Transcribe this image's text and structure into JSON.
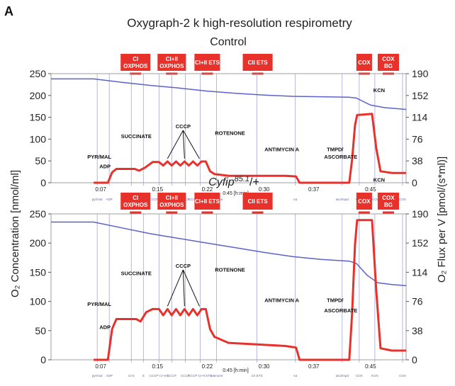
{
  "panel_letter": "A",
  "title": "Oxygraph-2 k high-resolution respirometry",
  "left_axis_label": "O₂ Concentration [nmol/ml]",
  "right_axis_label": "O₂ Flux per V [pmol/(s*ml)]",
  "time_unit_label": "0:45 [h:min]",
  "colors": {
    "concentration_line": "#5b62c8",
    "flux_line": "#e8312a",
    "state_box": "#e8312a",
    "marker_line": "#9999cc",
    "axis": "#555555"
  },
  "chart_data": [
    {
      "type": "line",
      "subtitle": "Control",
      "title_italic": false,
      "x_unit": "h:min",
      "x_ticks": [
        "0:07",
        "0:15",
        "0:22",
        "0:30",
        "0:37",
        "0:45"
      ],
      "x_range_min": [
        0,
        48
      ],
      "left_ylim": [
        0,
        250
      ],
      "left_yticks": [
        0,
        50,
        100,
        150,
        200,
        250
      ],
      "right_ylim": [
        0,
        190
      ],
      "right_yticks": [
        0,
        38,
        76,
        114,
        152,
        190
      ],
      "states": [
        {
          "label1": "CI",
          "label2": "OXPHOS",
          "t_start": 9.8,
          "t_end": 14.0
        },
        {
          "label1": "CI+II",
          "label2": "OXPHOS",
          "t_start": 15.0,
          "t_end": 19.0
        },
        {
          "label1": "CI+II ETS",
          "label2": "",
          "t_start": 20.2,
          "t_end": 23.8
        },
        {
          "label1": "CII ETS",
          "label2": "",
          "t_start": 27.0,
          "t_end": 31.2
        },
        {
          "label1": "COX",
          "label2": "",
          "t_start": 43.0,
          "t_end": 45.2
        },
        {
          "label1": "COX",
          "label2": "BG",
          "t_start": 46.0,
          "t_end": 49.0
        }
      ],
      "markers": [
        {
          "t": 6.5,
          "label": "pyr/mal"
        },
        {
          "t": 8.2,
          "label": "ADP"
        },
        {
          "t": 11.3,
          "label": "CI-b"
        },
        {
          "t": 13.0,
          "label": "S"
        },
        {
          "t": 15.2,
          "label": "CCCP CI+II-b"
        },
        {
          "t": 17.0,
          "label": "CCCP"
        },
        {
          "t": 18.9,
          "label": "CCCP"
        },
        {
          "t": 21.0,
          "label": "CCCP CI+II ETS"
        },
        {
          "t": 23.3,
          "label": "rotenone"
        },
        {
          "t": 29.0,
          "label": "CII ETS"
        },
        {
          "t": 34.4,
          "label": "Aa"
        },
        {
          "t": 41.0,
          "label": "asc/tmpd"
        },
        {
          "t": 43.4,
          "label": "COX"
        },
        {
          "t": 45.6,
          "label": "KCN"
        },
        {
          "t": 49.5,
          "label": "COX"
        }
      ],
      "series": [
        {
          "name": "O₂ concentration",
          "axis": "left",
          "points": [
            [
              0,
              238
            ],
            [
              6,
              238
            ],
            [
              10,
              230
            ],
            [
              14,
              223
            ],
            [
              18,
              217
            ],
            [
              22,
              210
            ],
            [
              26,
              205
            ],
            [
              30,
              201
            ],
            [
              34,
              198
            ],
            [
              38,
              197
            ],
            [
              42,
              196
            ],
            [
              43,
              194
            ],
            [
              45,
              178
            ],
            [
              47,
              172
            ],
            [
              50,
              168
            ]
          ]
        },
        {
          "name": "O₂ flux",
          "axis": "right",
          "points": [
            [
              6,
              0
            ],
            [
              8.0,
              0
            ],
            [
              8.6,
              18
            ],
            [
              9.2,
              24
            ],
            [
              11.8,
              24
            ],
            [
              12.4,
              21
            ],
            [
              13.2,
              26
            ],
            [
              14.3,
              36
            ],
            [
              15.2,
              36
            ],
            [
              15.8,
              30
            ],
            [
              16.4,
              37
            ],
            [
              17.0,
              30
            ],
            [
              17.6,
              37
            ],
            [
              18.2,
              30
            ],
            [
              18.8,
              37
            ],
            [
              19.4,
              30
            ],
            [
              20.0,
              37
            ],
            [
              20.6,
              30
            ],
            [
              21.2,
              37
            ],
            [
              21.8,
              37
            ],
            [
              22.4,
              20
            ],
            [
              23.0,
              15
            ],
            [
              25.0,
              12
            ],
            [
              29.0,
              12
            ],
            [
              33.0,
              12
            ],
            [
              34.5,
              11
            ],
            [
              35.0,
              0
            ],
            [
              38.0,
              0
            ],
            [
              41.0,
              0
            ],
            [
              42.0,
              0
            ],
            [
              42.4,
              40
            ],
            [
              42.8,
              100
            ],
            [
              43.1,
              118
            ],
            [
              45.2,
              120
            ],
            [
              45.8,
              60
            ],
            [
              46.4,
              20
            ],
            [
              48.0,
              17
            ],
            [
              50.0,
              17
            ]
          ]
        }
      ],
      "annotations": [
        {
          "text": "PYR/MAL",
          "t": 6.8,
          "v": 42
        },
        {
          "text": "ADP",
          "t": 7.6,
          "v": 25
        },
        {
          "text": "SUCCINATE",
          "t": 12.0,
          "v": 78
        },
        {
          "text": "CCCP",
          "t": 18.6,
          "v": 95
        },
        {
          "text": "ROTENONE",
          "t": 25.2,
          "v": 83
        },
        {
          "text": "ANTIMYCIN A",
          "t": 32.5,
          "v": 55
        },
        {
          "text": "TMPD/",
          "t": 40.0,
          "v": 55
        },
        {
          "text": "ASCORBATE",
          "t": 40.8,
          "v": 42
        },
        {
          "text": "KCN",
          "t": 46.2,
          "v": 158
        }
      ]
    },
    {
      "type": "line",
      "subtitle": "Cyfip85.1/+",
      "subtitle_main": "Cyfip",
      "subtitle_sup": "85.1",
      "subtitle_tail": "/+",
      "title_italic": true,
      "x_unit": "h:min",
      "x_ticks": [
        "0:07",
        "0:15",
        "0:22",
        "0:30",
        "0:37",
        "0:45"
      ],
      "x_range_min": [
        0,
        48
      ],
      "left_ylim": [
        0,
        250
      ],
      "left_yticks": [
        0,
        50,
        100,
        150,
        200,
        250
      ],
      "right_ylim": [
        0,
        190
      ],
      "right_yticks": [
        0,
        38,
        76,
        114,
        152,
        190
      ],
      "states": [
        {
          "label1": "CI",
          "label2": "OXPHOS",
          "t_start": 9.8,
          "t_end": 14.0
        },
        {
          "label1": "CI+II",
          "label2": "OXPHOS",
          "t_start": 15.0,
          "t_end": 19.0
        },
        {
          "label1": "CI+II ETS",
          "label2": "",
          "t_start": 20.2,
          "t_end": 23.8
        },
        {
          "label1": "CII ETS",
          "label2": "",
          "t_start": 27.0,
          "t_end": 31.2
        },
        {
          "label1": "COX",
          "label2": "",
          "t_start": 43.0,
          "t_end": 45.2
        },
        {
          "label1": "COX",
          "label2": "BG",
          "t_start": 46.0,
          "t_end": 49.0
        }
      ],
      "markers": [
        {
          "t": 6.5,
          "label": "pyr/mal"
        },
        {
          "t": 8.2,
          "label": "ADP"
        },
        {
          "t": 11.3,
          "label": "CI-b"
        },
        {
          "t": 13.0,
          "label": "S"
        },
        {
          "t": 15.2,
          "label": "CCCP CI+II-b"
        },
        {
          "t": 17.0,
          "label": "CCCP"
        },
        {
          "t": 18.9,
          "label": "CCCP"
        },
        {
          "t": 21.0,
          "label": "CCCP CI+II ETS"
        },
        {
          "t": 23.3,
          "label": "rotenone"
        },
        {
          "t": 29.0,
          "label": "CII ETS"
        },
        {
          "t": 34.4,
          "label": "Aa"
        },
        {
          "t": 41.0,
          "label": "asc/tmpd"
        },
        {
          "t": 43.4,
          "label": "COX"
        },
        {
          "t": 45.6,
          "label": "KCN"
        },
        {
          "t": 49.5,
          "label": "COX"
        }
      ],
      "series": [
        {
          "name": "O₂ concentration",
          "axis": "left",
          "points": [
            [
              0,
              236
            ],
            [
              6,
              236
            ],
            [
              10,
              226
            ],
            [
              14,
              216
            ],
            [
              18,
              208
            ],
            [
              22,
              200
            ],
            [
              26,
              192
            ],
            [
              30,
              184
            ],
            [
              34,
              177
            ],
            [
              38,
              172
            ],
            [
              42,
              169
            ],
            [
              43,
              165
            ],
            [
              44.5,
              145
            ],
            [
              46,
              132
            ],
            [
              48,
              129
            ],
            [
              50,
              127
            ]
          ]
        },
        {
          "name": "O₂ flux",
          "axis": "right",
          "points": [
            [
              6,
              0
            ],
            [
              8.0,
              0
            ],
            [
              8.6,
              40
            ],
            [
              9.2,
              53
            ],
            [
              12.0,
              53
            ],
            [
              12.6,
              50
            ],
            [
              13.4,
              62
            ],
            [
              14.3,
              66
            ],
            [
              15.2,
              66
            ],
            [
              15.8,
              58
            ],
            [
              16.4,
              66
            ],
            [
              17.0,
              58
            ],
            [
              17.6,
              66
            ],
            [
              18.2,
              58
            ],
            [
              18.8,
              66
            ],
            [
              19.4,
              58
            ],
            [
              20.0,
              66
            ],
            [
              20.6,
              58
            ],
            [
              21.2,
              66
            ],
            [
              21.8,
              66
            ],
            [
              22.4,
              40
            ],
            [
              23.0,
              30
            ],
            [
              25.0,
              22
            ],
            [
              29.0,
              20
            ],
            [
              33.0,
              18
            ],
            [
              34.5,
              16
            ],
            [
              35.0,
              0
            ],
            [
              38.0,
              0
            ],
            [
              41.0,
              0
            ],
            [
              42.0,
              0
            ],
            [
              42.4,
              60
            ],
            [
              42.8,
              150
            ],
            [
              43.1,
              182
            ],
            [
              45.2,
              182
            ],
            [
              45.8,
              90
            ],
            [
              46.4,
              15
            ],
            [
              48.0,
              12
            ],
            [
              50.0,
              12
            ]
          ]
        }
      ],
      "annotations": [
        {
          "text": "PYR/MAL",
          "t": 6.8,
          "v": 70
        },
        {
          "text": "ADP",
          "t": 7.6,
          "v": 40
        },
        {
          "text": "SUCCINATE",
          "t": 12.0,
          "v": 110
        },
        {
          "text": "CCCP",
          "t": 18.6,
          "v": 120
        },
        {
          "text": "ROTENONE",
          "t": 25.2,
          "v": 115
        },
        {
          "text": "ANTIMYCIN A",
          "t": 32.5,
          "v": 75
        },
        {
          "text": "TMPD/",
          "t": 40.0,
          "v": 75
        },
        {
          "text": "ASCORBATE",
          "t": 40.8,
          "v": 62
        },
        {
          "text": "KCN",
          "t": 46.2,
          "v": 232
        }
      ]
    }
  ]
}
